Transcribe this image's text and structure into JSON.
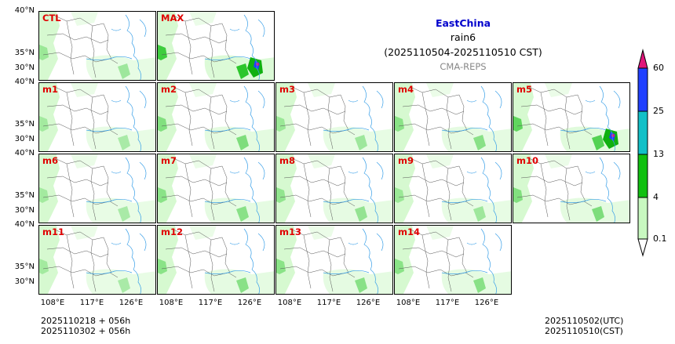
{
  "title": {
    "region": "EastChina",
    "variable": "rain6",
    "period": "(2025110504-2025110510 CST)",
    "model": "CMA-REPS"
  },
  "panels": [
    "CTL",
    "MAX",
    "m1",
    "m2",
    "m3",
    "m4",
    "m5",
    "m6",
    "m7",
    "m8",
    "m9",
    "m10",
    "m11",
    "m12",
    "m13",
    "m14"
  ],
  "lat_labels": [
    "40°N",
    "35°N",
    "30°N"
  ],
  "lon_labels": [
    "108°E",
    "117°E",
    "126°E"
  ],
  "footer": {
    "init_left": "2025110218  +  056h",
    "init_right": "2025110302  +  056h",
    "utc": "2025110502(UTC)",
    "cst": "2025110510(CST)"
  },
  "colorbar": {
    "labels": [
      "60",
      "25",
      "13",
      "4",
      "0.1"
    ],
    "colors": [
      "#e0157a",
      "#2040ff",
      "#12c0c8",
      "#10c010",
      "#c8f8c0"
    ]
  }
}
